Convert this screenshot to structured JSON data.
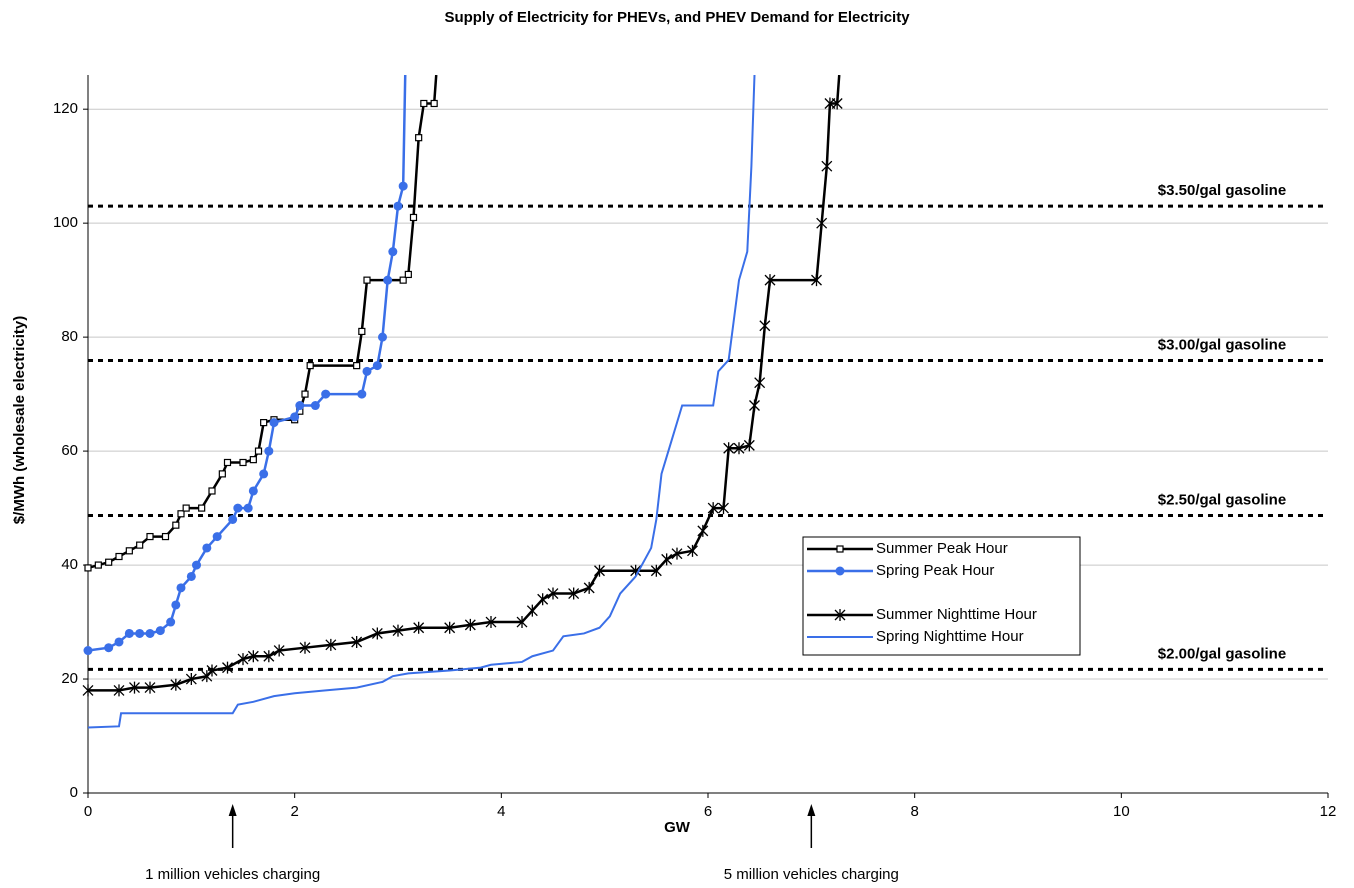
{
  "chart_data": {
    "type": "line",
    "title": "Supply of Electricity for PHEVs, and PHEV Demand for Electricity",
    "x_label": "GW",
    "y_label": "$/MWh (wholesale electricity)",
    "xlim": [
      0,
      12
    ],
    "xticks": [
      0,
      2,
      4,
      6,
      8,
      10,
      12
    ],
    "ylim": [
      0,
      126
    ],
    "yticks": [
      0,
      20,
      40,
      60,
      80,
      100,
      120
    ],
    "grid": true,
    "legend": "right",
    "series": [
      {
        "name": "Summer Peak Hour",
        "color": "#000000",
        "marker": "square",
        "x": [
          0,
          0.1,
          0.2,
          0.3,
          0.4,
          0.5,
          0.6,
          0.75,
          0.85,
          0.9,
          0.95,
          1.1,
          1.2,
          1.3,
          1.35,
          1.5,
          1.6,
          1.65,
          1.7,
          1.8,
          2.0,
          2.05,
          2.1,
          2.15,
          2.6,
          2.65,
          2.7,
          3.05,
          3.1,
          3.15,
          3.2,
          3.25,
          3.35,
          3.37
        ],
        "values": [
          39.5,
          40,
          40.5,
          41.5,
          42.5,
          43.5,
          45,
          45,
          47,
          49,
          50,
          50,
          53,
          56,
          58,
          58,
          58.5,
          60,
          65,
          65.5,
          65.5,
          67,
          70,
          75,
          75,
          81,
          90,
          90,
          91,
          101,
          115,
          121,
          121,
          126
        ]
      },
      {
        "name": "Spring Peak Hour",
        "color": "#3a6fe8",
        "marker": "circle",
        "x": [
          0,
          0.2,
          0.3,
          0.4,
          0.5,
          0.6,
          0.7,
          0.8,
          0.85,
          0.9,
          1.0,
          1.05,
          1.15,
          1.25,
          1.4,
          1.45,
          1.55,
          1.6,
          1.7,
          1.75,
          1.8,
          2.0,
          2.05,
          2.2,
          2.3,
          2.65,
          2.7,
          2.8,
          2.85,
          2.9,
          2.95,
          3.0,
          3.05,
          3.07
        ],
        "values": [
          25,
          25.5,
          26.5,
          28,
          28,
          28,
          28.5,
          30,
          33,
          36,
          38,
          40,
          43,
          45,
          48,
          50,
          50,
          53,
          56,
          60,
          65,
          66,
          68,
          68,
          70,
          70,
          74,
          75,
          80,
          90,
          95,
          103,
          106.5,
          126
        ]
      },
      {
        "name": "Summer Nighttime Hour",
        "color": "#000000",
        "marker": "star",
        "x": [
          0,
          0.3,
          0.45,
          0.6,
          0.85,
          1.0,
          1.15,
          1.2,
          1.35,
          1.5,
          1.6,
          1.75,
          1.85,
          2.1,
          2.35,
          2.6,
          2.8,
          3.0,
          3.2,
          3.5,
          3.7,
          3.9,
          4.2,
          4.3,
          4.4,
          4.5,
          4.7,
          4.85,
          4.95,
          5.3,
          5.5,
          5.6,
          5.7,
          5.85,
          5.95,
          6.05,
          6.15,
          6.2,
          6.3,
          6.4,
          6.45,
          6.5,
          6.55,
          6.6,
          7.05,
          7.1,
          7.15,
          7.18,
          7.25,
          7.27
        ],
        "values": [
          18,
          18,
          18.5,
          18.5,
          19,
          20,
          20.5,
          21.5,
          22,
          23.5,
          24,
          24,
          25,
          25.5,
          26,
          26.5,
          28,
          28.5,
          29,
          29,
          29.5,
          30,
          30,
          32,
          34,
          35,
          35,
          36,
          39,
          39,
          39,
          41,
          42,
          42.5,
          46,
          50,
          50,
          60.5,
          60.5,
          61,
          68,
          72,
          82,
          90,
          90,
          100,
          110,
          121,
          121,
          126
        ]
      },
      {
        "name": "Spring Nighttime Hour",
        "color": "#3a6fe8",
        "marker": null,
        "x": [
          0,
          0.3,
          0.32,
          1.4,
          1.45,
          1.6,
          1.8,
          2.0,
          2.3,
          2.6,
          2.85,
          2.95,
          3.1,
          3.5,
          3.8,
          3.9,
          4.2,
          4.3,
          4.5,
          4.6,
          4.8,
          4.95,
          5.05,
          5.15,
          5.3,
          5.45,
          5.5,
          5.55,
          5.65,
          5.7,
          5.75,
          6.05,
          6.1,
          6.2,
          6.3,
          6.38,
          6.42,
          6.45
        ],
        "values": [
          11.5,
          11.7,
          14,
          14,
          15.5,
          16,
          17,
          17.5,
          18,
          18.5,
          19.5,
          20.5,
          21,
          21.5,
          22,
          22.5,
          23,
          24,
          25,
          27.5,
          28,
          29,
          31,
          35,
          38,
          43,
          48,
          56,
          62,
          65,
          68,
          68,
          74,
          76,
          90,
          95,
          110,
          126
        ]
      }
    ],
    "reference_lines": [
      {
        "value": 21.7,
        "label": "$2.00/gal gasoline"
      },
      {
        "value": 48.7,
        "label": "$2.50/gal gasoline"
      },
      {
        "value": 75.9,
        "label": "$3.00/gal gasoline"
      },
      {
        "value": 103,
        "label": "$3.50/gal gasoline"
      }
    ],
    "annotations": [
      {
        "x": 1.4,
        "text": "1 million vehicles charging"
      },
      {
        "x": 7,
        "text": "5 million vehicles charging"
      }
    ]
  }
}
